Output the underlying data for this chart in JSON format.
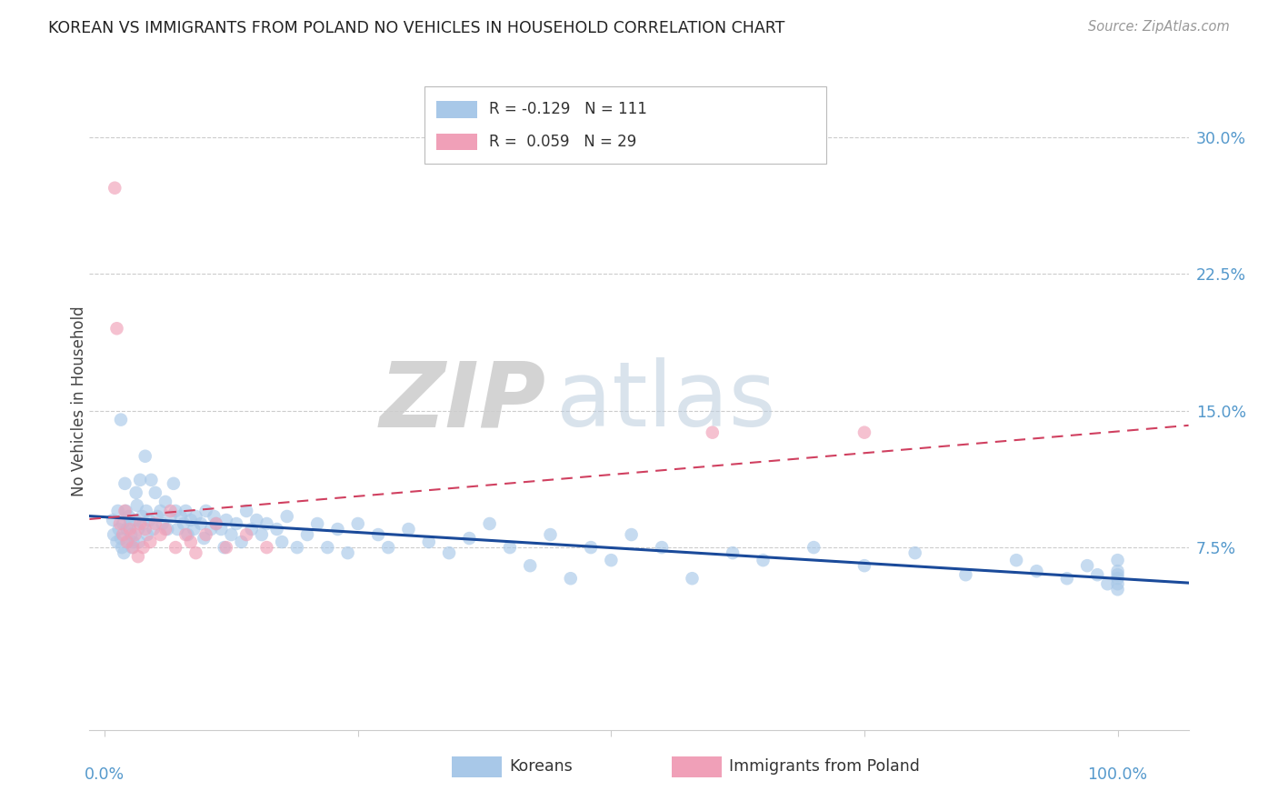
{
  "title": "KOREAN VS IMMIGRANTS FROM POLAND NO VEHICLES IN HOUSEHOLD CORRELATION CHART",
  "source": "Source: ZipAtlas.com",
  "ylabel": "No Vehicles in Household",
  "ytick_vals": [
    0.075,
    0.15,
    0.225,
    0.3
  ],
  "ytick_labels": [
    "7.5%",
    "15.0%",
    "22.5%",
    "30.0%"
  ],
  "xlim": [
    -0.015,
    1.07
  ],
  "ylim": [
    -0.025,
    0.335
  ],
  "legend_korean_R": "R = -0.129",
  "legend_korean_N": "N = 111",
  "legend_poland_R": "R = 0.059",
  "legend_poland_N": "N = 29",
  "korean_color": "#a8c8e8",
  "korean_color_line": "#1a4a9a",
  "poland_color": "#f0a0b8",
  "poland_color_line": "#d04060",
  "background_color": "#ffffff",
  "korean_x": [
    0.008,
    0.009,
    0.012,
    0.013,
    0.014,
    0.016,
    0.016,
    0.017,
    0.018,
    0.019,
    0.02,
    0.021,
    0.022,
    0.023,
    0.024,
    0.025,
    0.026,
    0.027,
    0.028,
    0.03,
    0.031,
    0.032,
    0.033,
    0.034,
    0.035,
    0.037,
    0.038,
    0.04,
    0.041,
    0.042,
    0.044,
    0.046,
    0.048,
    0.05,
    0.052,
    0.055,
    0.057,
    0.06,
    0.062,
    0.065,
    0.068,
    0.07,
    0.072,
    0.075,
    0.078,
    0.08,
    0.082,
    0.085,
    0.088,
    0.09,
    0.095,
    0.098,
    0.1,
    0.105,
    0.108,
    0.11,
    0.115,
    0.118,
    0.12,
    0.125,
    0.13,
    0.135,
    0.14,
    0.145,
    0.15,
    0.155,
    0.16,
    0.17,
    0.175,
    0.18,
    0.19,
    0.2,
    0.21,
    0.22,
    0.23,
    0.24,
    0.25,
    0.27,
    0.28,
    0.3,
    0.32,
    0.34,
    0.36,
    0.38,
    0.4,
    0.42,
    0.44,
    0.46,
    0.48,
    0.5,
    0.52,
    0.55,
    0.58,
    0.62,
    0.65,
    0.7,
    0.75,
    0.8,
    0.85,
    0.9,
    0.92,
    0.95,
    0.97,
    0.98,
    0.99,
    1.0,
    1.0,
    1.0,
    1.0,
    1.0,
    1.0
  ],
  "korean_y": [
    0.09,
    0.082,
    0.078,
    0.095,
    0.085,
    0.145,
    0.08,
    0.075,
    0.088,
    0.072,
    0.11,
    0.095,
    0.085,
    0.078,
    0.092,
    0.088,
    0.082,
    0.075,
    0.078,
    0.09,
    0.105,
    0.098,
    0.085,
    0.078,
    0.112,
    0.092,
    0.088,
    0.125,
    0.095,
    0.082,
    0.09,
    0.112,
    0.085,
    0.105,
    0.092,
    0.095,
    0.088,
    0.1,
    0.085,
    0.092,
    0.11,
    0.095,
    0.085,
    0.092,
    0.088,
    0.095,
    0.082,
    0.09,
    0.085,
    0.092,
    0.088,
    0.08,
    0.095,
    0.085,
    0.092,
    0.088,
    0.085,
    0.075,
    0.09,
    0.082,
    0.088,
    0.078,
    0.095,
    0.085,
    0.09,
    0.082,
    0.088,
    0.085,
    0.078,
    0.092,
    0.075,
    0.082,
    0.088,
    0.075,
    0.085,
    0.072,
    0.088,
    0.082,
    0.075,
    0.085,
    0.078,
    0.072,
    0.08,
    0.088,
    0.075,
    0.065,
    0.082,
    0.058,
    0.075,
    0.068,
    0.082,
    0.075,
    0.058,
    0.072,
    0.068,
    0.075,
    0.065,
    0.072,
    0.06,
    0.068,
    0.062,
    0.058,
    0.065,
    0.06,
    0.055,
    0.062,
    0.068,
    0.055,
    0.06,
    0.058,
    0.052
  ],
  "polish_x": [
    0.01,
    0.012,
    0.015,
    0.018,
    0.02,
    0.022,
    0.025,
    0.028,
    0.03,
    0.033,
    0.035,
    0.038,
    0.04,
    0.045,
    0.05,
    0.055,
    0.06,
    0.065,
    0.07,
    0.08,
    0.085,
    0.09,
    0.1,
    0.11,
    0.12,
    0.14,
    0.16,
    0.6,
    0.75
  ],
  "polish_y": [
    0.272,
    0.195,
    0.088,
    0.082,
    0.095,
    0.078,
    0.085,
    0.075,
    0.082,
    0.07,
    0.088,
    0.075,
    0.085,
    0.078,
    0.088,
    0.082,
    0.085,
    0.095,
    0.075,
    0.082,
    0.078,
    0.072,
    0.082,
    0.088,
    0.075,
    0.082,
    0.075,
    0.138,
    0.138
  ],
  "marker_size": 110,
  "korean_alpha": 0.65,
  "polish_alpha": 0.65
}
